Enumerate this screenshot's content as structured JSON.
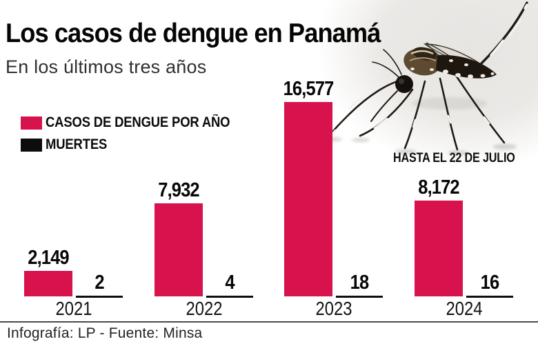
{
  "header": {
    "title": "Los casos de dengue en Panamá",
    "subtitle": "En los últimos tres años"
  },
  "legend": {
    "items": [
      {
        "label": "CASOS DE DENGUE POR AÑO",
        "color": "#d7124c"
      },
      {
        "label": "MUERTES",
        "color": "#0d0d0d"
      }
    ]
  },
  "chart_data": {
    "type": "bar",
    "categories": [
      "2021",
      "2022",
      "2023",
      "2024"
    ],
    "series": [
      {
        "name": "CASOS DE DENGUE POR AÑO",
        "values": [
          2149,
          7932,
          16577,
          8172
        ],
        "labels": [
          "2,149",
          "7,932",
          "16,577",
          "8,172"
        ],
        "color": "#d7124c"
      },
      {
        "name": "MUERTES",
        "values": [
          2,
          4,
          18,
          16
        ],
        "labels": [
          "2",
          "4",
          "18",
          "16"
        ],
        "color": "#0d0d0d"
      }
    ],
    "title": "Los casos de dengue en Panamá",
    "subtitle": "En los últimos tres años",
    "xlabel": "",
    "ylabel": "",
    "ylim": [
      0,
      16577
    ],
    "grid": false,
    "legend_position": "top-left",
    "value_labels": "above-bars",
    "annotations": [
      {
        "text": "HASTA EL 22 DE JULIO",
        "target": "2024"
      }
    ]
  },
  "annotation": {
    "hasta": "HASTA EL 22 DE JULIO"
  },
  "footer": {
    "credit": "Infografía: LP - Fuente: Minsa"
  },
  "icons": {
    "mosquito": "aedes-aegypti-mosquito-photo"
  }
}
